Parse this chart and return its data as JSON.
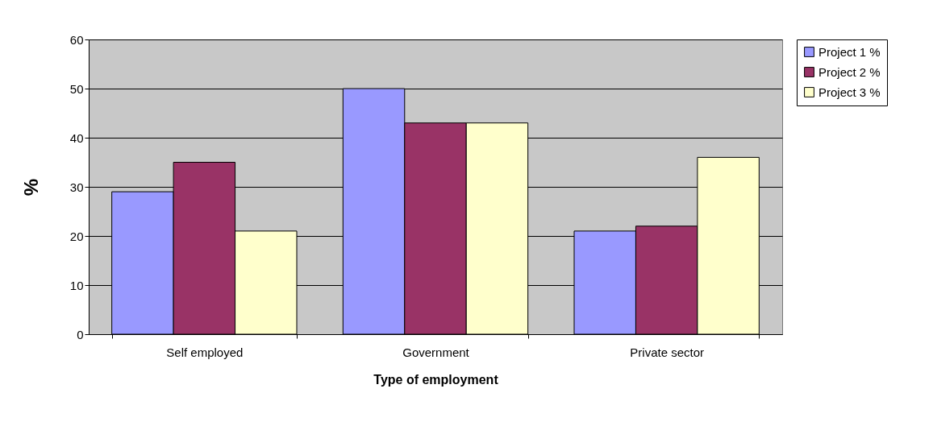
{
  "chart_data": {
    "type": "bar",
    "xlabel": "Type of employment",
    "ylabel": "%",
    "categories": [
      "Self employed",
      "Government",
      "Private sector"
    ],
    "series": [
      {
        "name": "Project 1 %",
        "color": "#9999ff",
        "values": [
          29,
          50,
          21
        ]
      },
      {
        "name": "Project 2 %",
        "color": "#993366",
        "values": [
          35,
          43,
          22
        ]
      },
      {
        "name": "Project 3 %",
        "color": "#ffffcc",
        "values": [
          21,
          43,
          36
        ]
      }
    ],
    "ylim": [
      0,
      60
    ],
    "yticks": [
      0,
      10,
      20,
      30,
      40,
      50,
      60
    ],
    "grid": "y",
    "legend": "top right"
  }
}
